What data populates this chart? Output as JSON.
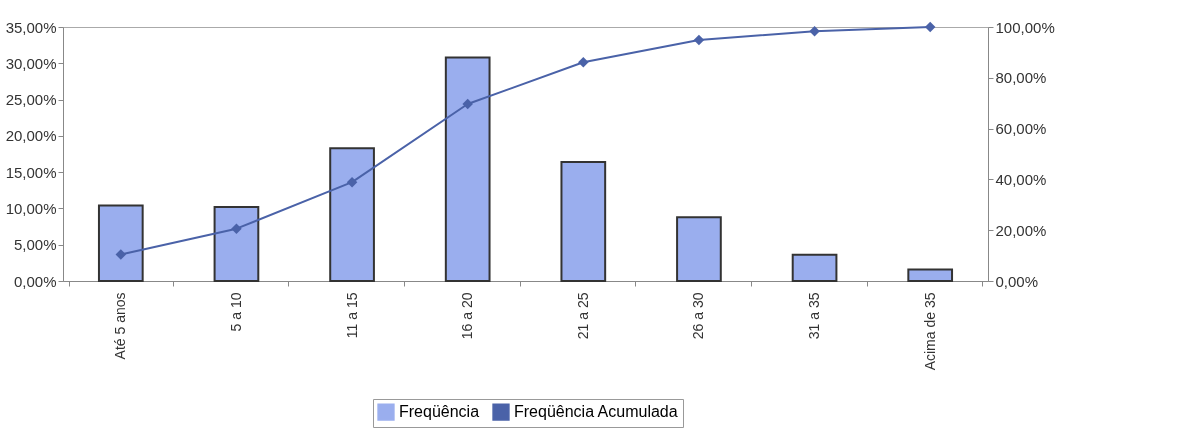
{
  "chart_data": {
    "type": "bar",
    "categories": [
      "Até 5 anos",
      "5 a 10",
      "11 a 15",
      "16 a 20",
      "21 a 25",
      "26 a 30",
      "31 a 35",
      "Acima de 35"
    ],
    "series": [
      {
        "name": "Freqüência",
        "color": "#9aaeee",
        "values": [
          10.4,
          10.2,
          18.3,
          30.8,
          16.4,
          8.8,
          3.6,
          1.6
        ]
      },
      {
        "name": "Freqüência Acumulada",
        "type": "line",
        "axis": "y2",
        "color": "#4a62a8",
        "marker": "diamond",
        "values": [
          10.4,
          20.6,
          38.9,
          69.7,
          86.1,
          94.9,
          98.3,
          100
        ]
      }
    ],
    "ylim": [
      0,
      35
    ],
    "yticks": [
      {
        "value": 0,
        "label": "0,00%"
      },
      {
        "value": 5,
        "label": "5,00%"
      },
      {
        "value": 10,
        "label": "10,00%"
      },
      {
        "value": 15,
        "label": "15,00%"
      },
      {
        "value": 20,
        "label": "20,00%"
      },
      {
        "value": 25,
        "label": "25,00%"
      },
      {
        "value": 30,
        "label": "30,00%"
      },
      {
        "value": 35,
        "label": "35,00%"
      }
    ],
    "y2lim": [
      0,
      100
    ],
    "y2ticks": [
      {
        "value": 0,
        "label": "0,00%"
      },
      {
        "value": 20,
        "label": "20,00%"
      },
      {
        "value": 40,
        "label": "40,00%"
      },
      {
        "value": 60,
        "label": "60,00%"
      },
      {
        "value": 80,
        "label": "80,00%"
      },
      {
        "value": 100,
        "label": "100,00%"
      }
    ],
    "grid": false,
    "legend": "bottom"
  }
}
